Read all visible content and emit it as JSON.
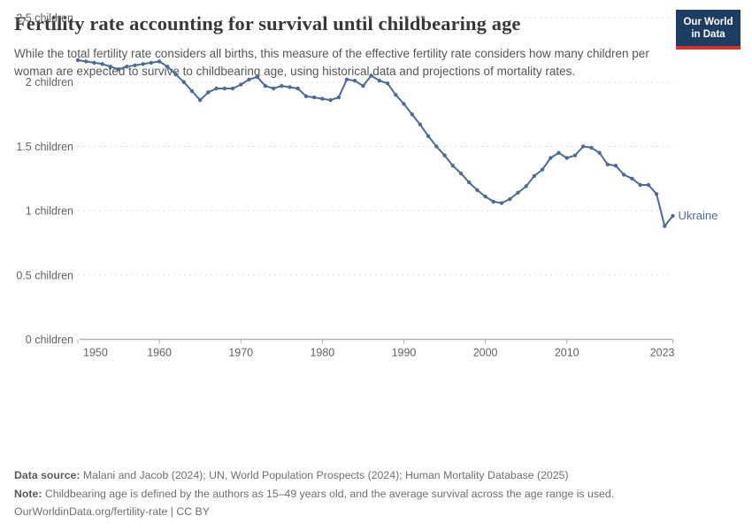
{
  "header": {
    "title": "Fertility rate accounting for survival until childbearing age",
    "subtitle": "While the total fertility rate considers all births, this measure of the effective fertility rate considers how many children per woman are expected to survive to childbearing age, using historical data and projections of mortality rates.",
    "logo_line1": "Our World",
    "logo_line2": "in Data",
    "logo_bg_color": "#1d3d63",
    "logo_accent_color": "#d7352b"
  },
  "chart_data": {
    "type": "line",
    "title": "Fertility rate accounting for survival until childbearing age",
    "xlabel": "",
    "ylabel": "",
    "xlim": [
      1950,
      2023
    ],
    "ylim": [
      0,
      2.5
    ],
    "grid": "horizontal-dashed",
    "legend_position": "end-of-line-label",
    "x_ticks": [
      1950,
      1960,
      1970,
      1980,
      1990,
      2000,
      2010,
      2023
    ],
    "x_tick_labels": [
      "1950",
      "1960",
      "1970",
      "1980",
      "1990",
      "2000",
      "2010",
      "2023"
    ],
    "y_ticks": [
      0,
      0.5,
      1,
      1.5,
      2,
      2.5
    ],
    "y_tick_labels": [
      "0 children",
      "0.5 children",
      "1 children",
      "1.5 children",
      "2 children",
      "2.5 children"
    ],
    "series": [
      {
        "name": "Ukraine",
        "color": "#4c6a9c",
        "end_label": "Ukraine",
        "x": [
          1950,
          1951,
          1952,
          1953,
          1954,
          1955,
          1956,
          1957,
          1958,
          1959,
          1960,
          1961,
          1962,
          1963,
          1964,
          1965,
          1966,
          1967,
          1968,
          1969,
          1970,
          1971,
          1972,
          1973,
          1974,
          1975,
          1976,
          1977,
          1978,
          1979,
          1980,
          1981,
          1982,
          1983,
          1984,
          1985,
          1986,
          1987,
          1988,
          1989,
          1990,
          1991,
          1992,
          1993,
          1994,
          1995,
          1996,
          1997,
          1998,
          1999,
          2000,
          2001,
          2002,
          2003,
          2004,
          2005,
          2006,
          2007,
          2008,
          2009,
          2010,
          2011,
          2012,
          2013,
          2014,
          2015,
          2016,
          2017,
          2018,
          2019,
          2020,
          2021,
          2022,
          2023
        ],
        "values": [
          2.17,
          2.16,
          2.15,
          2.14,
          2.12,
          2.1,
          2.12,
          2.13,
          2.14,
          2.15,
          2.16,
          2.12,
          2.06,
          2.0,
          1.93,
          1.86,
          1.92,
          1.95,
          1.95,
          1.95,
          1.98,
          2.02,
          2.04,
          1.97,
          1.95,
          1.97,
          1.96,
          1.95,
          1.89,
          1.88,
          1.87,
          1.86,
          1.88,
          2.02,
          2.01,
          1.97,
          2.05,
          2.01,
          1.99,
          1.9,
          1.83,
          1.75,
          1.67,
          1.58,
          1.5,
          1.43,
          1.35,
          1.29,
          1.22,
          1.16,
          1.11,
          1.07,
          1.06,
          1.09,
          1.14,
          1.19,
          1.27,
          1.32,
          1.41,
          1.45,
          1.41,
          1.43,
          1.5,
          1.49,
          1.45,
          1.36,
          1.35,
          1.28,
          1.25,
          1.2,
          1.2,
          1.13,
          0.88,
          0.96
        ]
      }
    ]
  },
  "footer": {
    "data_source_label": "Data source:",
    "data_source_text": "Malani and Jacob (2024); UN, World Population Prospects (2024); Human Mortality Database (2025)",
    "note_label": "Note:",
    "note_text": "Childbearing age is defined by the authors as 15–49 years old, and the average survival across the age range is used.",
    "url_line": "OurWorldinData.org/fertility-rate | CC BY"
  }
}
